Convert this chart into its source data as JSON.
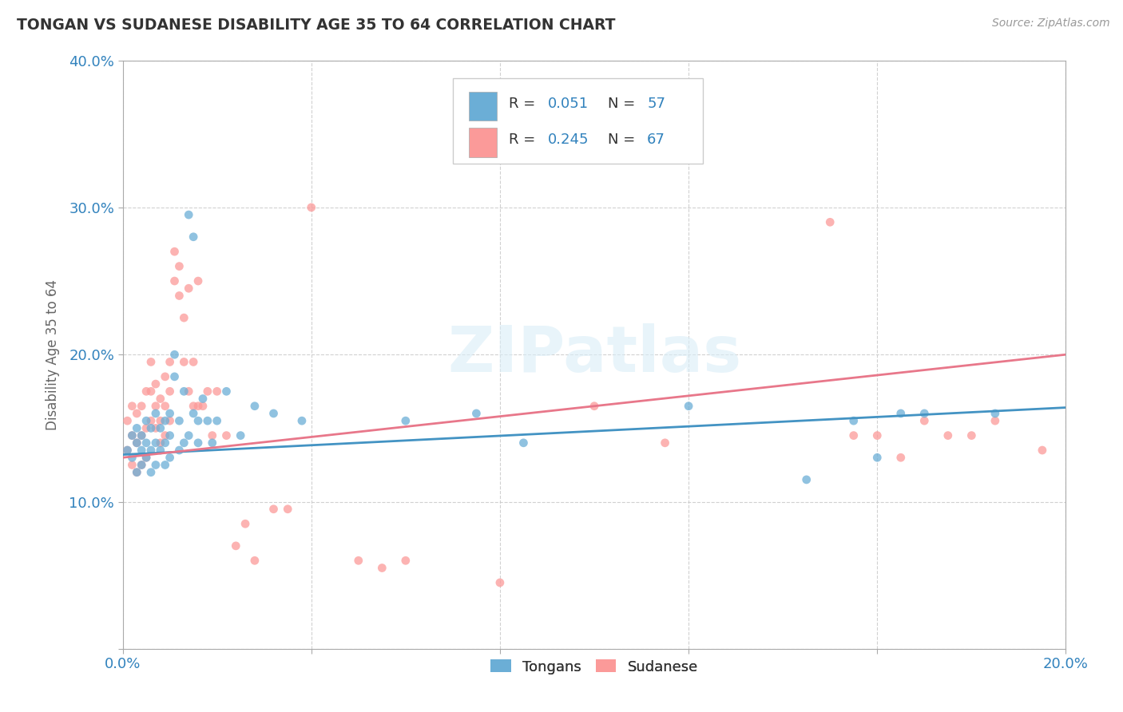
{
  "title": "TONGAN VS SUDANESE DISABILITY AGE 35 TO 64 CORRELATION CHART",
  "source": "Source: ZipAtlas.com",
  "ylabel_label": "Disability Age 35 to 64",
  "xlim": [
    0.0,
    0.2
  ],
  "ylim": [
    0.0,
    0.4
  ],
  "xticks": [
    0.0,
    0.04,
    0.08,
    0.12,
    0.16,
    0.2
  ],
  "yticks": [
    0.0,
    0.1,
    0.2,
    0.3,
    0.4
  ],
  "xtick_labels": [
    "0.0%",
    "",
    "",
    "",
    "",
    "20.0%"
  ],
  "ytick_labels": [
    "",
    "10.0%",
    "20.0%",
    "30.0%",
    "40.0%"
  ],
  "tongan_color": "#6baed6",
  "sudanese_color": "#fb9a99",
  "tongan_line_color": "#4393c3",
  "sudanese_line_color": "#e8778a",
  "tongan_R": 0.051,
  "tongan_N": 57,
  "sudanese_R": 0.245,
  "sudanese_N": 67,
  "legend_color": "#3182bd",
  "watermark": "ZIPatlas",
  "background_color": "#ffffff",
  "grid_color": "#cccccc",
  "title_color": "#333333",
  "axis_label_color": "#666666",
  "tick_color": "#3182bd",
  "tongan_x": [
    0.001,
    0.002,
    0.002,
    0.003,
    0.003,
    0.003,
    0.004,
    0.004,
    0.004,
    0.005,
    0.005,
    0.005,
    0.006,
    0.006,
    0.006,
    0.007,
    0.007,
    0.007,
    0.008,
    0.008,
    0.009,
    0.009,
    0.009,
    0.01,
    0.01,
    0.01,
    0.011,
    0.011,
    0.012,
    0.012,
    0.013,
    0.013,
    0.014,
    0.014,
    0.015,
    0.015,
    0.016,
    0.016,
    0.017,
    0.018,
    0.019,
    0.02,
    0.022,
    0.025,
    0.028,
    0.032,
    0.038,
    0.06,
    0.075,
    0.085,
    0.12,
    0.145,
    0.155,
    0.16,
    0.165,
    0.17,
    0.185
  ],
  "tongan_y": [
    0.135,
    0.13,
    0.145,
    0.12,
    0.14,
    0.15,
    0.125,
    0.135,
    0.145,
    0.13,
    0.14,
    0.155,
    0.12,
    0.135,
    0.15,
    0.125,
    0.14,
    0.16,
    0.135,
    0.15,
    0.125,
    0.14,
    0.155,
    0.13,
    0.145,
    0.16,
    0.185,
    0.2,
    0.135,
    0.155,
    0.14,
    0.175,
    0.295,
    0.145,
    0.28,
    0.16,
    0.14,
    0.155,
    0.17,
    0.155,
    0.14,
    0.155,
    0.175,
    0.145,
    0.165,
    0.16,
    0.155,
    0.155,
    0.16,
    0.14,
    0.165,
    0.115,
    0.155,
    0.13,
    0.16,
    0.16,
    0.16
  ],
  "sudanese_x": [
    0.001,
    0.001,
    0.002,
    0.002,
    0.002,
    0.003,
    0.003,
    0.003,
    0.004,
    0.004,
    0.004,
    0.005,
    0.005,
    0.005,
    0.006,
    0.006,
    0.006,
    0.007,
    0.007,
    0.007,
    0.008,
    0.008,
    0.008,
    0.009,
    0.009,
    0.009,
    0.01,
    0.01,
    0.01,
    0.011,
    0.011,
    0.012,
    0.012,
    0.013,
    0.013,
    0.014,
    0.014,
    0.015,
    0.015,
    0.016,
    0.016,
    0.017,
    0.018,
    0.019,
    0.02,
    0.022,
    0.024,
    0.026,
    0.028,
    0.032,
    0.035,
    0.04,
    0.05,
    0.055,
    0.06,
    0.08,
    0.1,
    0.115,
    0.15,
    0.155,
    0.16,
    0.165,
    0.17,
    0.175,
    0.18,
    0.185,
    0.195
  ],
  "sudanese_y": [
    0.135,
    0.155,
    0.125,
    0.145,
    0.165,
    0.12,
    0.14,
    0.16,
    0.125,
    0.145,
    0.165,
    0.13,
    0.15,
    0.175,
    0.155,
    0.175,
    0.195,
    0.15,
    0.165,
    0.18,
    0.14,
    0.155,
    0.17,
    0.145,
    0.165,
    0.185,
    0.155,
    0.175,
    0.195,
    0.25,
    0.27,
    0.24,
    0.26,
    0.195,
    0.225,
    0.175,
    0.245,
    0.165,
    0.195,
    0.165,
    0.25,
    0.165,
    0.175,
    0.145,
    0.175,
    0.145,
    0.07,
    0.085,
    0.06,
    0.095,
    0.095,
    0.3,
    0.06,
    0.055,
    0.06,
    0.045,
    0.165,
    0.14,
    0.29,
    0.145,
    0.145,
    0.13,
    0.155,
    0.145,
    0.145,
    0.155,
    0.135
  ],
  "tongan_reg": [
    0.132,
    0.164
  ],
  "sudanese_reg": [
    0.13,
    0.2
  ]
}
